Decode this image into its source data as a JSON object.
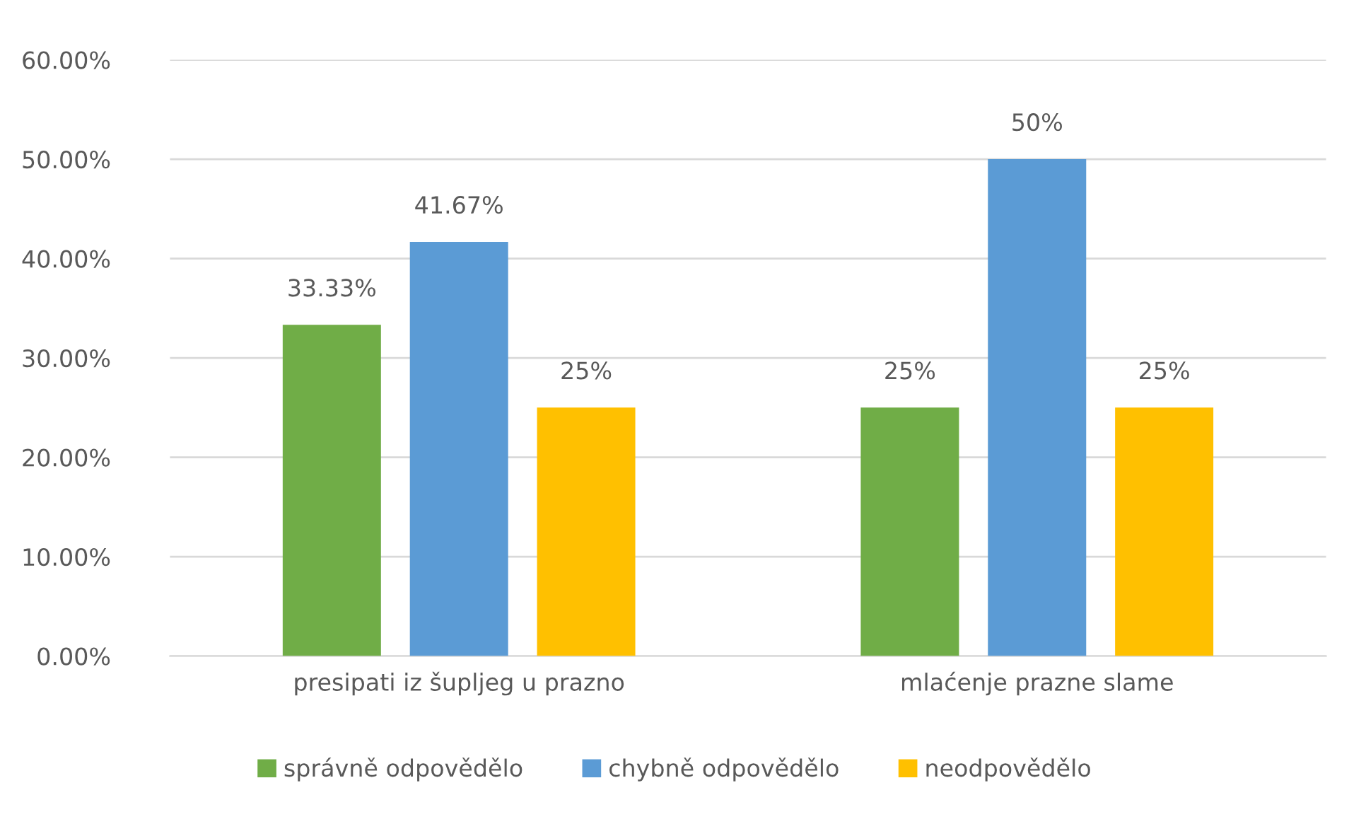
{
  "chart_data": {
    "type": "bar",
    "categories": [
      "presipati iz šupljeg u prazno",
      "mlaćenje prazne slame"
    ],
    "series": [
      {
        "name": "správně odpovědělo",
        "color": "#70ad47",
        "values": [
          33.33,
          25
        ],
        "value_labels": [
          "33.33%",
          "25%"
        ]
      },
      {
        "name": "chybně odpovědělo",
        "color": "#5b9bd5",
        "values": [
          41.67,
          50
        ],
        "value_labels": [
          "41.67%",
          "50%"
        ]
      },
      {
        "name": "neodpovědělo",
        "color": "#ffc000",
        "values": [
          25,
          25
        ],
        "value_labels": [
          "25%",
          "25%"
        ]
      }
    ],
    "ylim": [
      0,
      60
    ],
    "yticks": [
      {
        "value": 0,
        "label": "0.00%"
      },
      {
        "value": 10,
        "label": "10.00%"
      },
      {
        "value": 20,
        "label": "20.00%"
      },
      {
        "value": 30,
        "label": "30.00%"
      },
      {
        "value": 40,
        "label": "40.00%"
      },
      {
        "value": 50,
        "label": "50.00%"
      },
      {
        "value": 60,
        "label": "60.00%"
      }
    ],
    "grid": "y",
    "legend": "bottom"
  }
}
